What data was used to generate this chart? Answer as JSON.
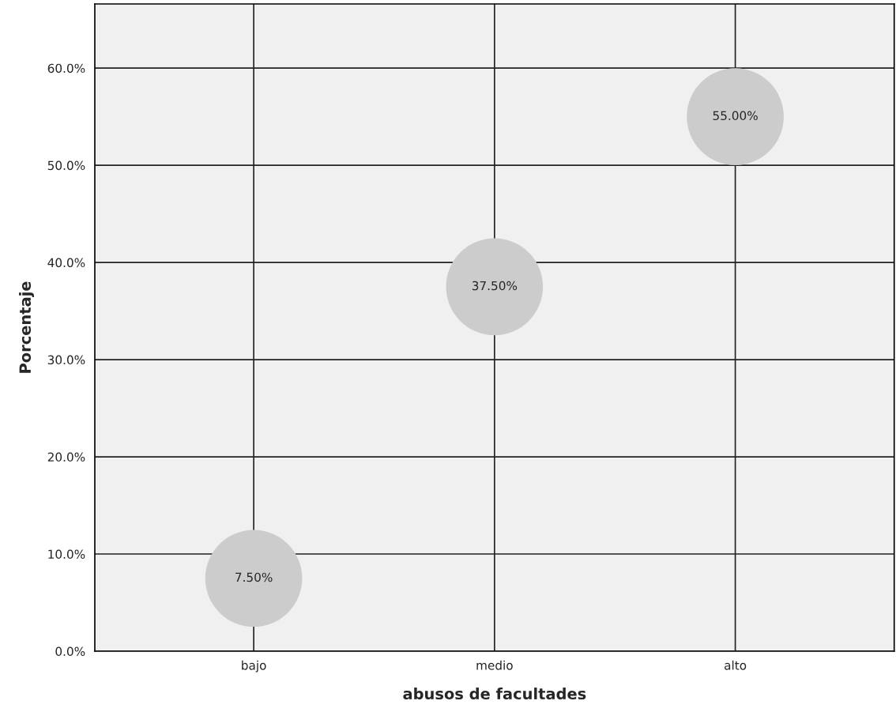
{
  "chart_data": {
    "type": "scatter",
    "xlabel": "abusos de facultades",
    "ylabel": "Porcentaje",
    "categories": [
      "bajo",
      "medio",
      "alto"
    ],
    "values": [
      7.5,
      37.5,
      55.0
    ],
    "value_labels": [
      "7.50%",
      "37.50%",
      "55.00%"
    ],
    "color": "#cccccc",
    "marker": "circle",
    "ylim": [
      0,
      66.6
    ],
    "yticks": [
      {
        "value": 0,
        "label": "0.0%"
      },
      {
        "value": 10,
        "label": "10.0%"
      },
      {
        "value": 20,
        "label": "20.0%"
      },
      {
        "value": 30,
        "label": "30.0%"
      },
      {
        "value": 40,
        "label": "40.0%"
      },
      {
        "value": 50,
        "label": "50.0%"
      },
      {
        "value": 60,
        "label": "60.0%"
      }
    ],
    "grid": true,
    "legend": false
  }
}
